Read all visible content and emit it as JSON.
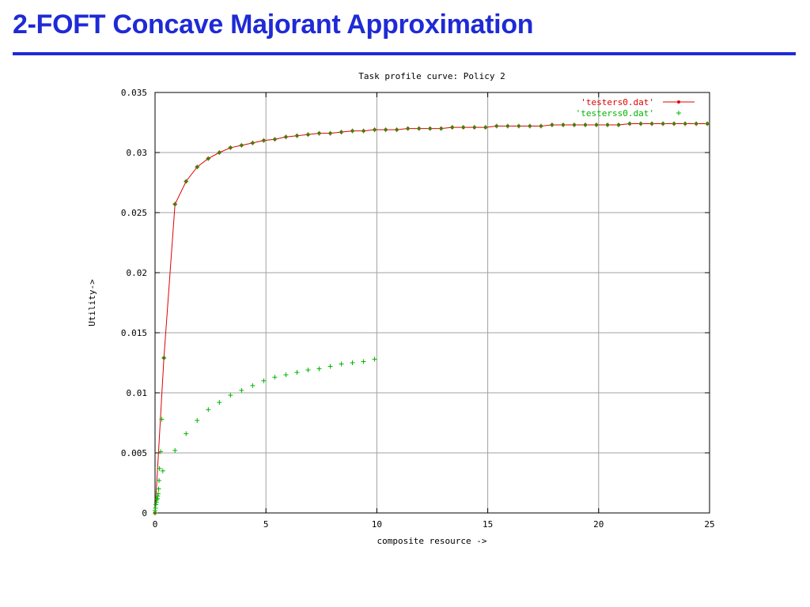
{
  "slide": {
    "title": "2-FOFT Concave Majorant Approximation"
  },
  "colors": {
    "title": "#1f2ad6",
    "series_concave": "#e00000",
    "series_raw": "#00b400",
    "grid": "#a0a0a0"
  },
  "chart_data": {
    "type": "line",
    "title": "Task profile curve: Policy 2",
    "xlabel": "composite resource ->",
    "ylabel": "Utility->",
    "xlim": [
      0,
      25
    ],
    "ylim": [
      0,
      0.035
    ],
    "x_ticks": [
      0,
      5,
      10,
      15,
      20,
      25
    ],
    "y_ticks": [
      0,
      0.005,
      0.01,
      0.015,
      0.02,
      0.025,
      0.03,
      0.035
    ],
    "x_tick_labels": [
      "0",
      "5",
      "10",
      "15",
      "20",
      "25"
    ],
    "y_tick_labels": [
      "0",
      "0.005",
      "0.01",
      "0.015",
      "0.02",
      "0.025",
      "0.03",
      "0.035"
    ],
    "grid": true,
    "legend_position": "top-right",
    "series": [
      {
        "name": "'testers0.dat'",
        "style": "linespoints",
        "color": "#e00000",
        "x": [
          0,
          0.4,
          0.9,
          1.4,
          1.9,
          2.4,
          2.9,
          3.4,
          3.9,
          4.4,
          4.9,
          5.4,
          5.9,
          6.4,
          6.9,
          7.4,
          7.9,
          8.4,
          8.9,
          9.4,
          9.9,
          10.4,
          10.9,
          11.4,
          11.9,
          12.4,
          12.9,
          13.4,
          13.9,
          14.4,
          14.9,
          15.4,
          15.9,
          16.4,
          16.9,
          17.4,
          17.9,
          18.4,
          18.9,
          19.4,
          19.9,
          20.4,
          20.9,
          21.4,
          21.9,
          22.4,
          22.9,
          23.4,
          23.9,
          24.4,
          24.9
        ],
        "y": [
          0,
          0.0129,
          0.0257,
          0.0276,
          0.0288,
          0.0295,
          0.03,
          0.0304,
          0.0306,
          0.0308,
          0.031,
          0.0311,
          0.0313,
          0.0314,
          0.0315,
          0.0316,
          0.0316,
          0.0317,
          0.0318,
          0.0318,
          0.0319,
          0.0319,
          0.0319,
          0.032,
          0.032,
          0.032,
          0.032,
          0.0321,
          0.0321,
          0.0321,
          0.0321,
          0.0322,
          0.0322,
          0.0322,
          0.0322,
          0.0322,
          0.0323,
          0.0323,
          0.0323,
          0.0323,
          0.0323,
          0.0323,
          0.0323,
          0.0324,
          0.0324,
          0.0324,
          0.0324,
          0.0324,
          0.0324,
          0.0324,
          0.0324
        ]
      },
      {
        "name": "'testerss0.dat'",
        "style": "points",
        "color": "#00b400",
        "x": [
          0,
          0.02,
          0.04,
          0.06,
          0.08,
          0.1,
          0.12,
          0.14,
          0.16,
          0.18,
          0.2,
          0.25,
          0.3,
          0.35,
          0.9,
          1.4,
          1.9,
          2.4,
          2.9,
          3.4,
          3.9,
          4.4,
          4.9,
          5.4,
          5.9,
          6.4,
          6.9,
          7.4,
          7.9,
          8.4,
          8.9,
          9.4,
          9.9
        ],
        "y": [
          0.0002,
          0.0004,
          0.0007,
          0.0009,
          0.0011,
          0.0012,
          0.0014,
          0.0016,
          0.002,
          0.0027,
          0.0037,
          0.0051,
          0.0078,
          0.0035,
          0.0052,
          0.0066,
          0.0077,
          0.0086,
          0.0092,
          0.0098,
          0.0102,
          0.0106,
          0.011,
          0.0113,
          0.0115,
          0.0117,
          0.0119,
          0.012,
          0.0122,
          0.0124,
          0.0125,
          0.0126,
          0.0128
        ]
      }
    ]
  }
}
